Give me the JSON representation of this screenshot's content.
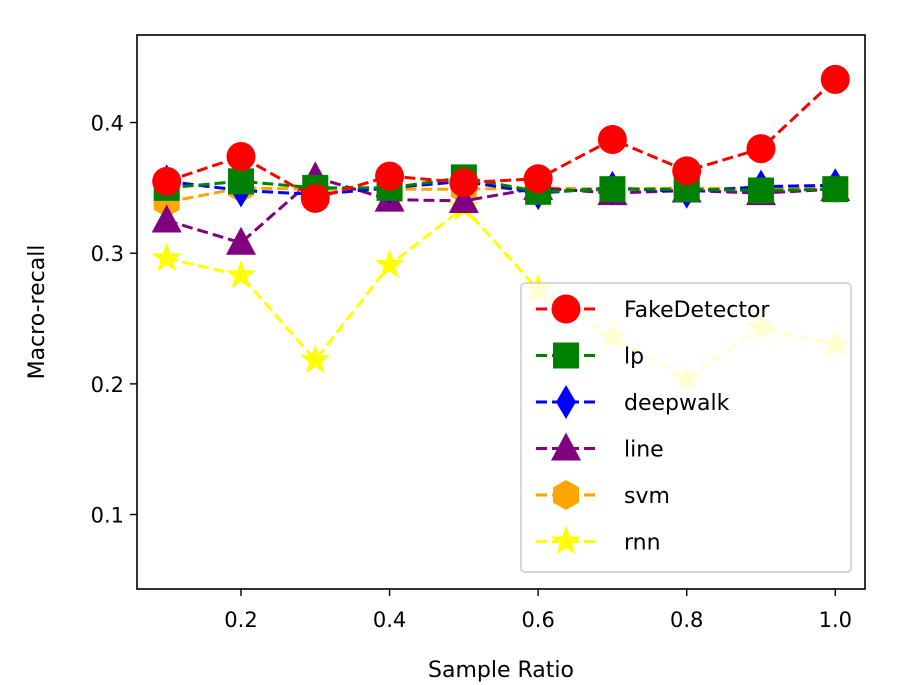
{
  "chart_data": {
    "type": "line",
    "xlabel": "Sample Ratio",
    "ylabel": "Macro-recall",
    "xlim": [
      0.06,
      1.04
    ],
    "ylim": [
      0.043,
      0.467
    ],
    "xticks": [
      0.2,
      0.4,
      0.6,
      0.8,
      1.0
    ],
    "xtick_labels": [
      "0.2",
      "0.4",
      "0.6",
      "0.8",
      "1.0"
    ],
    "yticks": [
      0.1,
      0.2,
      0.3,
      0.4
    ],
    "ytick_labels": [
      "0.1",
      "0.2",
      "0.3",
      "0.4"
    ],
    "grid": false,
    "legend_position": "lower-right",
    "x": [
      0.1,
      0.2,
      0.3,
      0.4,
      0.5,
      0.6,
      0.7,
      0.8,
      0.9,
      1.0
    ],
    "series": [
      {
        "name": "FakeDetector",
        "color": "#ff0000",
        "marker": "circle",
        "values": [
          0.355,
          0.374,
          0.342,
          0.359,
          0.354,
          0.357,
          0.387,
          0.363,
          0.38,
          0.433
        ]
      },
      {
        "name": "lp",
        "color": "#008000",
        "marker": "square",
        "values": [
          0.35,
          0.355,
          0.35,
          0.35,
          0.358,
          0.347,
          0.349,
          0.349,
          0.348,
          0.349
        ]
      },
      {
        "name": "deepwalk",
        "color": "#0000ff",
        "marker": "diamond",
        "values": [
          0.355,
          0.348,
          0.345,
          0.35,
          0.355,
          0.346,
          0.35,
          0.347,
          0.351,
          0.352
        ]
      },
      {
        "name": "line",
        "color": "#800080",
        "marker": "triangle",
        "values": [
          0.325,
          0.308,
          0.358,
          0.341,
          0.34,
          0.35,
          0.346,
          0.348,
          0.346,
          0.349
        ]
      },
      {
        "name": "svm",
        "color": "#ffa500",
        "marker": "hexagon",
        "values": [
          0.339,
          0.35,
          0.349,
          0.349,
          0.349,
          0.35,
          0.349,
          0.35,
          0.349,
          0.35
        ]
      },
      {
        "name": "rnn",
        "color": "#ffff00",
        "marker": "star",
        "values": [
          0.296,
          0.283,
          0.218,
          0.291,
          0.335,
          0.272,
          0.236,
          0.204,
          0.243,
          0.23
        ]
      }
    ]
  }
}
